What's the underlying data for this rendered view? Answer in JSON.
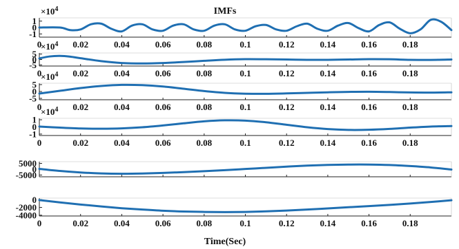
{
  "chart_data": {
    "type": "line",
    "title": "IMFs",
    "xlabel": "Time(Sec)",
    "xlim": [
      0,
      0.2
    ],
    "x_ticks": [
      0,
      0.02,
      0.04,
      0.06,
      0.08,
      0.1,
      0.12,
      0.14,
      0.16,
      0.18
    ],
    "x_tick_labels": [
      "0",
      "0.02",
      "0.04",
      "0.06",
      "0.08",
      "0.1",
      "0.12",
      "0.14",
      "0.16",
      "0.18"
    ],
    "line_color": "#1f6fb2",
    "grid": false,
    "panels": [
      {
        "exponent_label": "×10",
        "exponent_power": "4",
        "ylim": [
          -1.5,
          1.5
        ],
        "y_ticks": [
          1,
          0,
          -1
        ],
        "y_tick_labels": [
          "1",
          "0",
          "-1"
        ],
        "show_x_tick_labels": true,
        "series": {
          "x": [
            0,
            0.01,
            0.015,
            0.02,
            0.025,
            0.03,
            0.035,
            0.04,
            0.045,
            0.05,
            0.055,
            0.06,
            0.065,
            0.07,
            0.075,
            0.08,
            0.085,
            0.09,
            0.095,
            0.1,
            0.105,
            0.11,
            0.115,
            0.12,
            0.125,
            0.13,
            0.135,
            0.14,
            0.145,
            0.15,
            0.155,
            0.16,
            0.165,
            0.17,
            0.175,
            0.18,
            0.185,
            0.19,
            0.195,
            0.2
          ],
          "y": [
            0,
            0,
            -0.4,
            -0.3,
            0.5,
            0.6,
            -0.2,
            -0.6,
            0.3,
            0.5,
            -0.3,
            -0.5,
            0.3,
            0.5,
            -0.3,
            -0.5,
            0.3,
            0.5,
            -0.3,
            -0.5,
            0.2,
            0.4,
            -0.3,
            -0.5,
            0.2,
            0.6,
            -0.2,
            -0.5,
            0.3,
            0.7,
            -0.1,
            -0.6,
            0.4,
            0.8,
            -0.2,
            -0.9,
            -0.3,
            1.2,
            0.9,
            -0.4
          ]
        }
      },
      {
        "exponent_label": "×10",
        "exponent_power": "4",
        "ylim": [
          -6,
          6
        ],
        "y_ticks": [
          5,
          0,
          -5
        ],
        "y_tick_labels": [
          "5",
          "0",
          "-5"
        ],
        "show_x_tick_labels": true,
        "series": {
          "x": [
            0,
            0.005,
            0.01,
            0.015,
            0.02,
            0.03,
            0.04,
            0.05,
            0.06,
            0.07,
            0.08,
            0.09,
            0.1,
            0.11,
            0.12,
            0.13,
            0.14,
            0.15,
            0.16,
            0.17,
            0.18,
            0.19,
            0.2
          ],
          "y": [
            1,
            2.8,
            3.3,
            2.6,
            1.2,
            -1.5,
            -3.2,
            -3.6,
            -3.2,
            -2.3,
            -1.2,
            -0.2,
            0.3,
            0.2,
            0,
            -0.3,
            -0.3,
            0,
            0.3,
            0.2,
            -0.3,
            -0.4,
            0
          ]
        }
      },
      {
        "exponent_label": "×10",
        "exponent_power": "4",
        "ylim": [
          -6,
          6
        ],
        "y_ticks": [
          5,
          0,
          -5
        ],
        "y_tick_labels": [
          "5",
          "0",
          "-5"
        ],
        "show_x_tick_labels": true,
        "series": {
          "x": [
            0,
            0.01,
            0.02,
            0.03,
            0.04,
            0.05,
            0.06,
            0.07,
            0.08,
            0.09,
            0.1,
            0.11,
            0.12,
            0.13,
            0.14,
            0.15,
            0.16,
            0.17,
            0.18,
            0.19,
            0.2
          ],
          "y": [
            -1.5,
            0.5,
            2.5,
            4,
            4.8,
            4.6,
            3.6,
            2,
            0.3,
            -1,
            -1.6,
            -1.7,
            -1.4,
            -1,
            -0.6,
            -0.3,
            -0.2,
            -0.4,
            -0.7,
            -0.8,
            -0.6
          ]
        }
      },
      {
        "exponent_label": "×10",
        "exponent_power": "4",
        "ylim": [
          -1.2,
          1.2
        ],
        "y_ticks": [
          1,
          0,
          -1
        ],
        "y_tick_labels": [
          "1",
          "0",
          "-1"
        ],
        "show_x_tick_labels": true,
        "series": {
          "x": [
            0,
            0.01,
            0.02,
            0.03,
            0.04,
            0.05,
            0.06,
            0.07,
            0.08,
            0.09,
            0.1,
            0.11,
            0.12,
            0.13,
            0.14,
            0.15,
            0.16,
            0.17,
            0.18,
            0.19,
            0.2
          ],
          "y": [
            0.05,
            -0.1,
            -0.22,
            -0.25,
            -0.2,
            -0.05,
            0.2,
            0.5,
            0.78,
            0.92,
            0.88,
            0.65,
            0.3,
            -0.05,
            -0.3,
            -0.42,
            -0.4,
            -0.28,
            -0.1,
            0.05,
            0.12
          ]
        }
      },
      {
        "exponent_label": "",
        "exponent_power": "",
        "ylim": [
          -6500,
          6500
        ],
        "y_ticks": [
          5000,
          0,
          -5000
        ],
        "y_tick_labels": [
          "5000",
          "0",
          "-5000"
        ],
        "show_x_tick_labels": false,
        "series": {
          "x": [
            0,
            0.01,
            0.02,
            0.03,
            0.04,
            0.05,
            0.06,
            0.07,
            0.08,
            0.09,
            0.1,
            0.11,
            0.12,
            0.13,
            0.14,
            0.15,
            0.16,
            0.17,
            0.18,
            0.19,
            0.2
          ],
          "y": [
            300,
            -1500,
            -2800,
            -3600,
            -3900,
            -3700,
            -3200,
            -2500,
            -1700,
            -800,
            200,
            1200,
            2200,
            3100,
            3700,
            4000,
            4000,
            3600,
            2700,
            1500,
            -300
          ]
        }
      },
      {
        "exponent_label": "",
        "exponent_power": "",
        "ylim": [
          -4200,
          400
        ],
        "y_ticks": [
          0,
          -2000,
          -4000
        ],
        "y_tick_labels": [
          "0",
          "-2000",
          "-4000"
        ],
        "show_x_tick_labels": true,
        "series": {
          "x": [
            0,
            0.01,
            0.02,
            0.03,
            0.04,
            0.05,
            0.06,
            0.07,
            0.08,
            0.09,
            0.1,
            0.11,
            0.12,
            0.13,
            0.14,
            0.15,
            0.16,
            0.17,
            0.18,
            0.19,
            0.2
          ],
          "y": [
            -100,
            -700,
            -1250,
            -1750,
            -2200,
            -2550,
            -2850,
            -3050,
            -3150,
            -3200,
            -3150,
            -3000,
            -2800,
            -2550,
            -2250,
            -1950,
            -1650,
            -1350,
            -1000,
            -600,
            -150
          ]
        }
      }
    ]
  }
}
